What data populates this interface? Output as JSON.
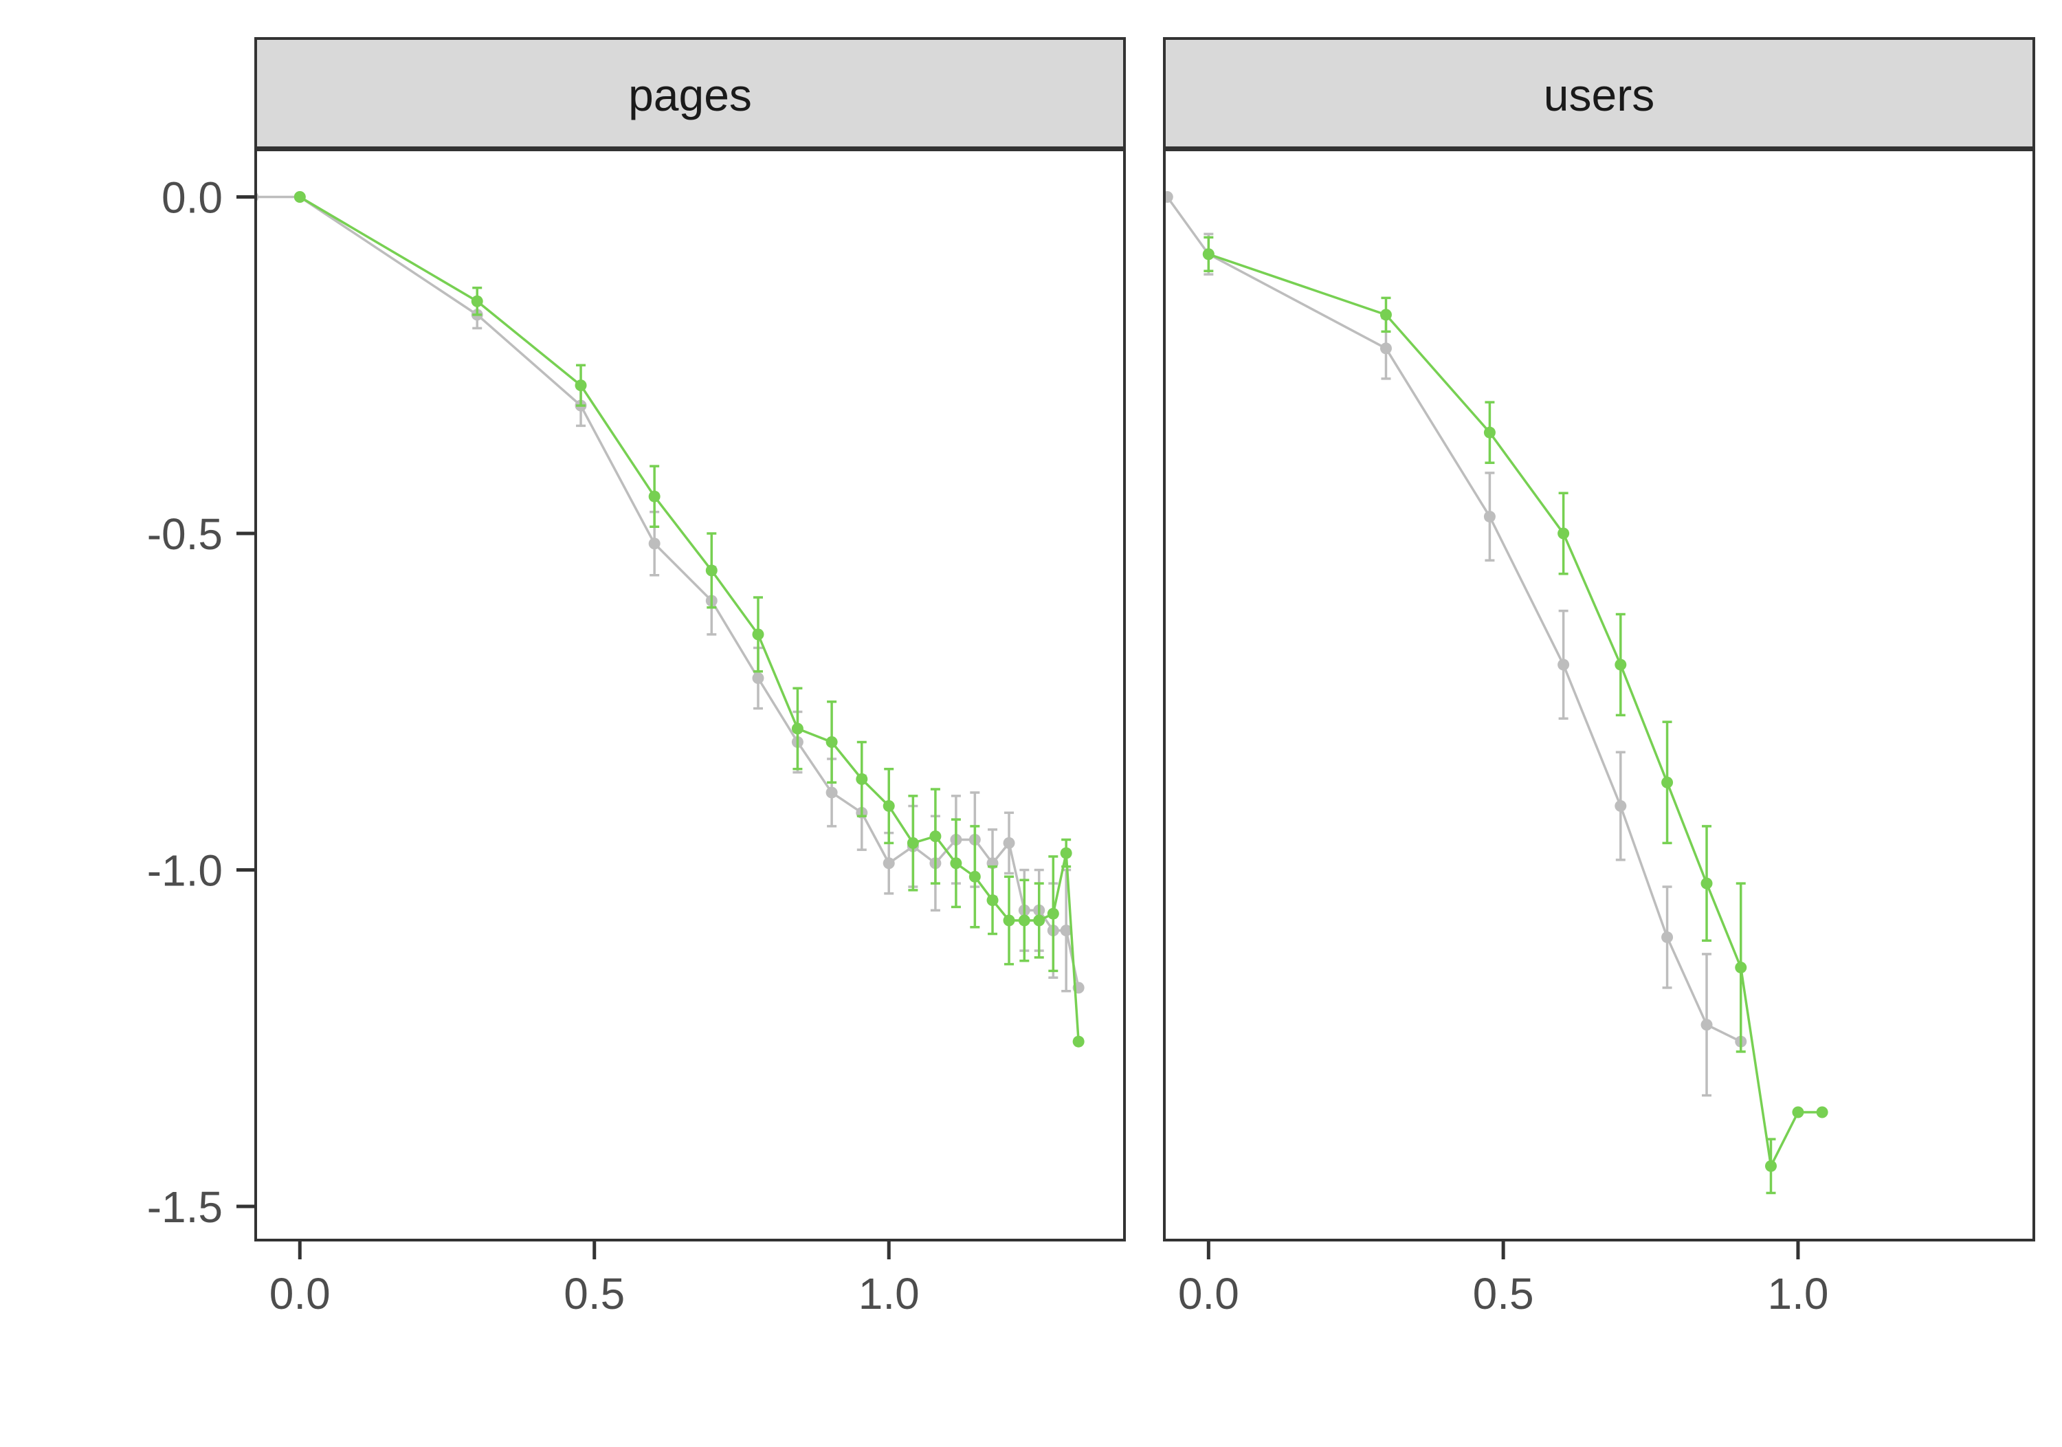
{
  "chart_data": {
    "type": "line",
    "title": "",
    "xlabel": "",
    "ylabel": "",
    "x_ticks": [
      "0.0",
      "0.5",
      "1.0"
    ],
    "y_ticks": [
      "0.0",
      "-0.5",
      "-1.0",
      "-1.5"
    ],
    "xlim": [
      -0.075,
      1.4
    ],
    "ylim": [
      -1.55,
      0.07
    ],
    "grid": false,
    "legend": "none",
    "colors": {
      "green": "#77D052",
      "gray": "#BDBDBD",
      "strip": "#D9D9D9",
      "frame": "#333333",
      "text": "#4D4D4D"
    },
    "panels": [
      {
        "strip_label": "pages",
        "series": [
          {
            "color": "#BDBDBD",
            "points": [
              {
                "x": -0.08,
                "y": 0.0,
                "err": 0
              },
              {
                "x": 0.0,
                "y": 0.0,
                "err": 0
              },
              {
                "x": 0.301,
                "y": -0.175,
                "err": 0.02
              },
              {
                "x": 0.477,
                "y": -0.31,
                "err": 0.03
              },
              {
                "x": 0.602,
                "y": -0.515,
                "err": 0.047
              },
              {
                "x": 0.699,
                "y": -0.6,
                "err": 0.05
              },
              {
                "x": 0.778,
                "y": -0.715,
                "err": 0.045
              },
              {
                "x": 0.845,
                "y": -0.81,
                "err": 0.045
              },
              {
                "x": 0.903,
                "y": -0.885,
                "err": 0.05
              },
              {
                "x": 0.954,
                "y": -0.915,
                "err": 0.055
              },
              {
                "x": 1.0,
                "y": -0.99,
                "err": 0.045
              },
              {
                "x": 1.041,
                "y": -0.965,
                "err": 0.06
              },
              {
                "x": 1.079,
                "y": -0.99,
                "err": 0.07
              },
              {
                "x": 1.114,
                "y": -0.955,
                "err": 0.065
              },
              {
                "x": 1.146,
                "y": -0.955,
                "err": 0.07
              },
              {
                "x": 1.176,
                "y": -0.99,
                "err": 0.05
              },
              {
                "x": 1.204,
                "y": -0.96,
                "err": 0.045
              },
              {
                "x": 1.23,
                "y": -1.06,
                "err": 0.06
              },
              {
                "x": 1.255,
                "y": -1.06,
                "err": 0.06
              },
              {
                "x": 1.279,
                "y": -1.09,
                "err": 0.07
              },
              {
                "x": 1.301,
                "y": -1.09,
                "err": 0.09
              },
              {
                "x": 1.322,
                "y": -1.175,
                "err": 0
              }
            ]
          },
          {
            "color": "#77D052",
            "points": [
              {
                "x": 0.0,
                "y": 0.0,
                "err": 0
              },
              {
                "x": 0.301,
                "y": -0.155,
                "err": 0.02
              },
              {
                "x": 0.477,
                "y": -0.28,
                "err": 0.03
              },
              {
                "x": 0.602,
                "y": -0.445,
                "err": 0.045
              },
              {
                "x": 0.699,
                "y": -0.555,
                "err": 0.055
              },
              {
                "x": 0.778,
                "y": -0.65,
                "err": 0.055
              },
              {
                "x": 0.845,
                "y": -0.79,
                "err": 0.06
              },
              {
                "x": 0.903,
                "y": -0.81,
                "err": 0.06
              },
              {
                "x": 0.954,
                "y": -0.865,
                "err": 0.055
              },
              {
                "x": 1.0,
                "y": -0.905,
                "err": 0.055
              },
              {
                "x": 1.041,
                "y": -0.96,
                "err": 0.07
              },
              {
                "x": 1.079,
                "y": -0.95,
                "err": 0.07
              },
              {
                "x": 1.114,
                "y": -0.99,
                "err": 0.065
              },
              {
                "x": 1.146,
                "y": -1.01,
                "err": 0.075
              },
              {
                "x": 1.176,
                "y": -1.045,
                "err": 0.05
              },
              {
                "x": 1.204,
                "y": -1.075,
                "err": 0.065
              },
              {
                "x": 1.23,
                "y": -1.075,
                "err": 0.06
              },
              {
                "x": 1.255,
                "y": -1.075,
                "err": 0.055
              },
              {
                "x": 1.279,
                "y": -1.065,
                "err": 0.085
              },
              {
                "x": 1.301,
                "y": -0.975,
                "err": 0.02
              },
              {
                "x": 1.322,
                "y": -1.255,
                "err": 0
              }
            ]
          }
        ]
      },
      {
        "strip_label": "users",
        "series": [
          {
            "color": "#BDBDBD",
            "points": [
              {
                "x": -0.07,
                "y": 0.0,
                "err": 0
              },
              {
                "x": 0.0,
                "y": -0.085,
                "err": 0.03
              },
              {
                "x": 0.301,
                "y": -0.225,
                "err": 0.045
              },
              {
                "x": 0.477,
                "y": -0.475,
                "err": 0.065
              },
              {
                "x": 0.602,
                "y": -0.695,
                "err": 0.08
              },
              {
                "x": 0.699,
                "y": -0.905,
                "err": 0.08
              },
              {
                "x": 0.778,
                "y": -1.1,
                "err": 0.075
              },
              {
                "x": 0.845,
                "y": -1.23,
                "err": 0.105
              },
              {
                "x": 0.903,
                "y": -1.255,
                "err": 0
              }
            ]
          },
          {
            "color": "#77D052",
            "points": [
              {
                "x": 0.0,
                "y": -0.085,
                "err": 0.025
              },
              {
                "x": 0.301,
                "y": -0.175,
                "err": 0.025
              },
              {
                "x": 0.477,
                "y": -0.35,
                "err": 0.045
              },
              {
                "x": 0.602,
                "y": -0.5,
                "err": 0.06
              },
              {
                "x": 0.699,
                "y": -0.695,
                "err": 0.075
              },
              {
                "x": 0.778,
                "y": -0.87,
                "err": 0.09
              },
              {
                "x": 0.845,
                "y": -1.02,
                "err": 0.085
              },
              {
                "x": 0.903,
                "y": -1.145,
                "err": 0.125
              },
              {
                "x": 0.954,
                "y": -1.44,
                "err": 0.04
              },
              {
                "x": 1.0,
                "y": -1.36,
                "err": 0
              },
              {
                "x": 1.041,
                "y": -1.36,
                "err": 0
              }
            ]
          }
        ]
      }
    ]
  }
}
